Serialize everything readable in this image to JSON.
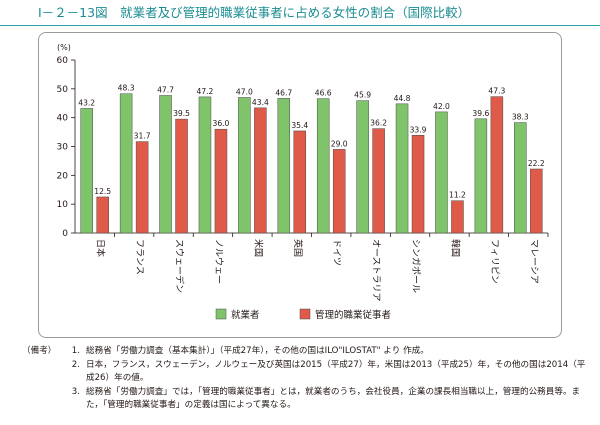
{
  "title": "Ⅰ－２－13図　就業者及び管理的職業従事者に占める女性の割合（国際比較）",
  "colors": {
    "series1": "#7fc46a",
    "series2": "#e05a4a",
    "title": "#1a8c91"
  },
  "chart_data": {
    "type": "bar",
    "ylabel": "(%)",
    "ylim": [
      0,
      60
    ],
    "yticks": [
      0,
      10,
      20,
      30,
      40,
      50,
      60
    ],
    "grid": false,
    "legend_position": "bottom-center",
    "categories": [
      "日本",
      "フランス",
      "スウェーデン",
      "ノルウェー",
      "米国",
      "英国",
      "ドイツ",
      "オーストラリア",
      "シンガポール",
      "韓国",
      "フィリピン",
      "マレーシア"
    ],
    "series": [
      {
        "name": "就業者",
        "values": [
          43.2,
          48.3,
          47.7,
          47.2,
          47.0,
          46.7,
          46.6,
          45.9,
          44.8,
          42.0,
          39.6,
          38.3
        ]
      },
      {
        "name": "管理的職業従事者",
        "values": [
          12.5,
          31.7,
          39.5,
          36.0,
          43.4,
          35.4,
          29.0,
          36.2,
          33.9,
          11.2,
          47.3,
          22.2
        ]
      }
    ]
  },
  "notes": {
    "label": "（備考）",
    "items": [
      {
        "num": "1.",
        "text": "総務省「労働力調査（基本集計）」（平成27年），その他の国はILO\"ILOSTAT\" より 作成。"
      },
      {
        "num": "2.",
        "text": "日本，フランス，スウェーデン，ノルウェー及び英国は2015（平成27）年，米国は2013（平成25）年，その他の国は2014（平成26）年の値。"
      },
      {
        "num": "3.",
        "text": "総務省「労働力調査」では，「管理的職業従事者」とは，就業者のうち，会社役員，企業の課長相当職以上，管理的公務員等。また，「管理的職業従事者」の定義は国によって異なる。"
      }
    ]
  }
}
